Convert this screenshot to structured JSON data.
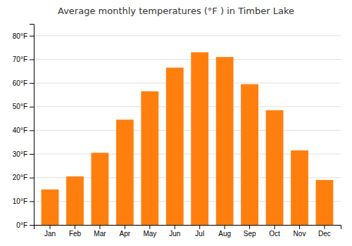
{
  "chart_data": {
    "type": "bar",
    "title": "Average monthly temperatures (°F ) in Timber Lake",
    "categories": [
      "Jan",
      "Feb",
      "Mar",
      "Apr",
      "May",
      "Jun",
      "Jul",
      "Aug",
      "Sep",
      "Oct",
      "Nov",
      "Dec"
    ],
    "values": [
      15,
      20.5,
      30.5,
      44.5,
      56.5,
      66.5,
      73,
      71,
      59.5,
      48.5,
      31.5,
      19
    ],
    "ylim": [
      0,
      85
    ],
    "yticks": [
      {
        "value": 0,
        "label": "0°F"
      },
      {
        "value": 10,
        "label": "10°F"
      },
      {
        "value": 20,
        "label": "20°F"
      },
      {
        "value": 30,
        "label": "30°F"
      },
      {
        "value": 40,
        "label": "40°F"
      },
      {
        "value": 50,
        "label": "50°F"
      },
      {
        "value": 60,
        "label": "60°F"
      },
      {
        "value": 70,
        "label": "70°F"
      },
      {
        "value": 80,
        "label": "80°F"
      }
    ],
    "grid": true
  }
}
